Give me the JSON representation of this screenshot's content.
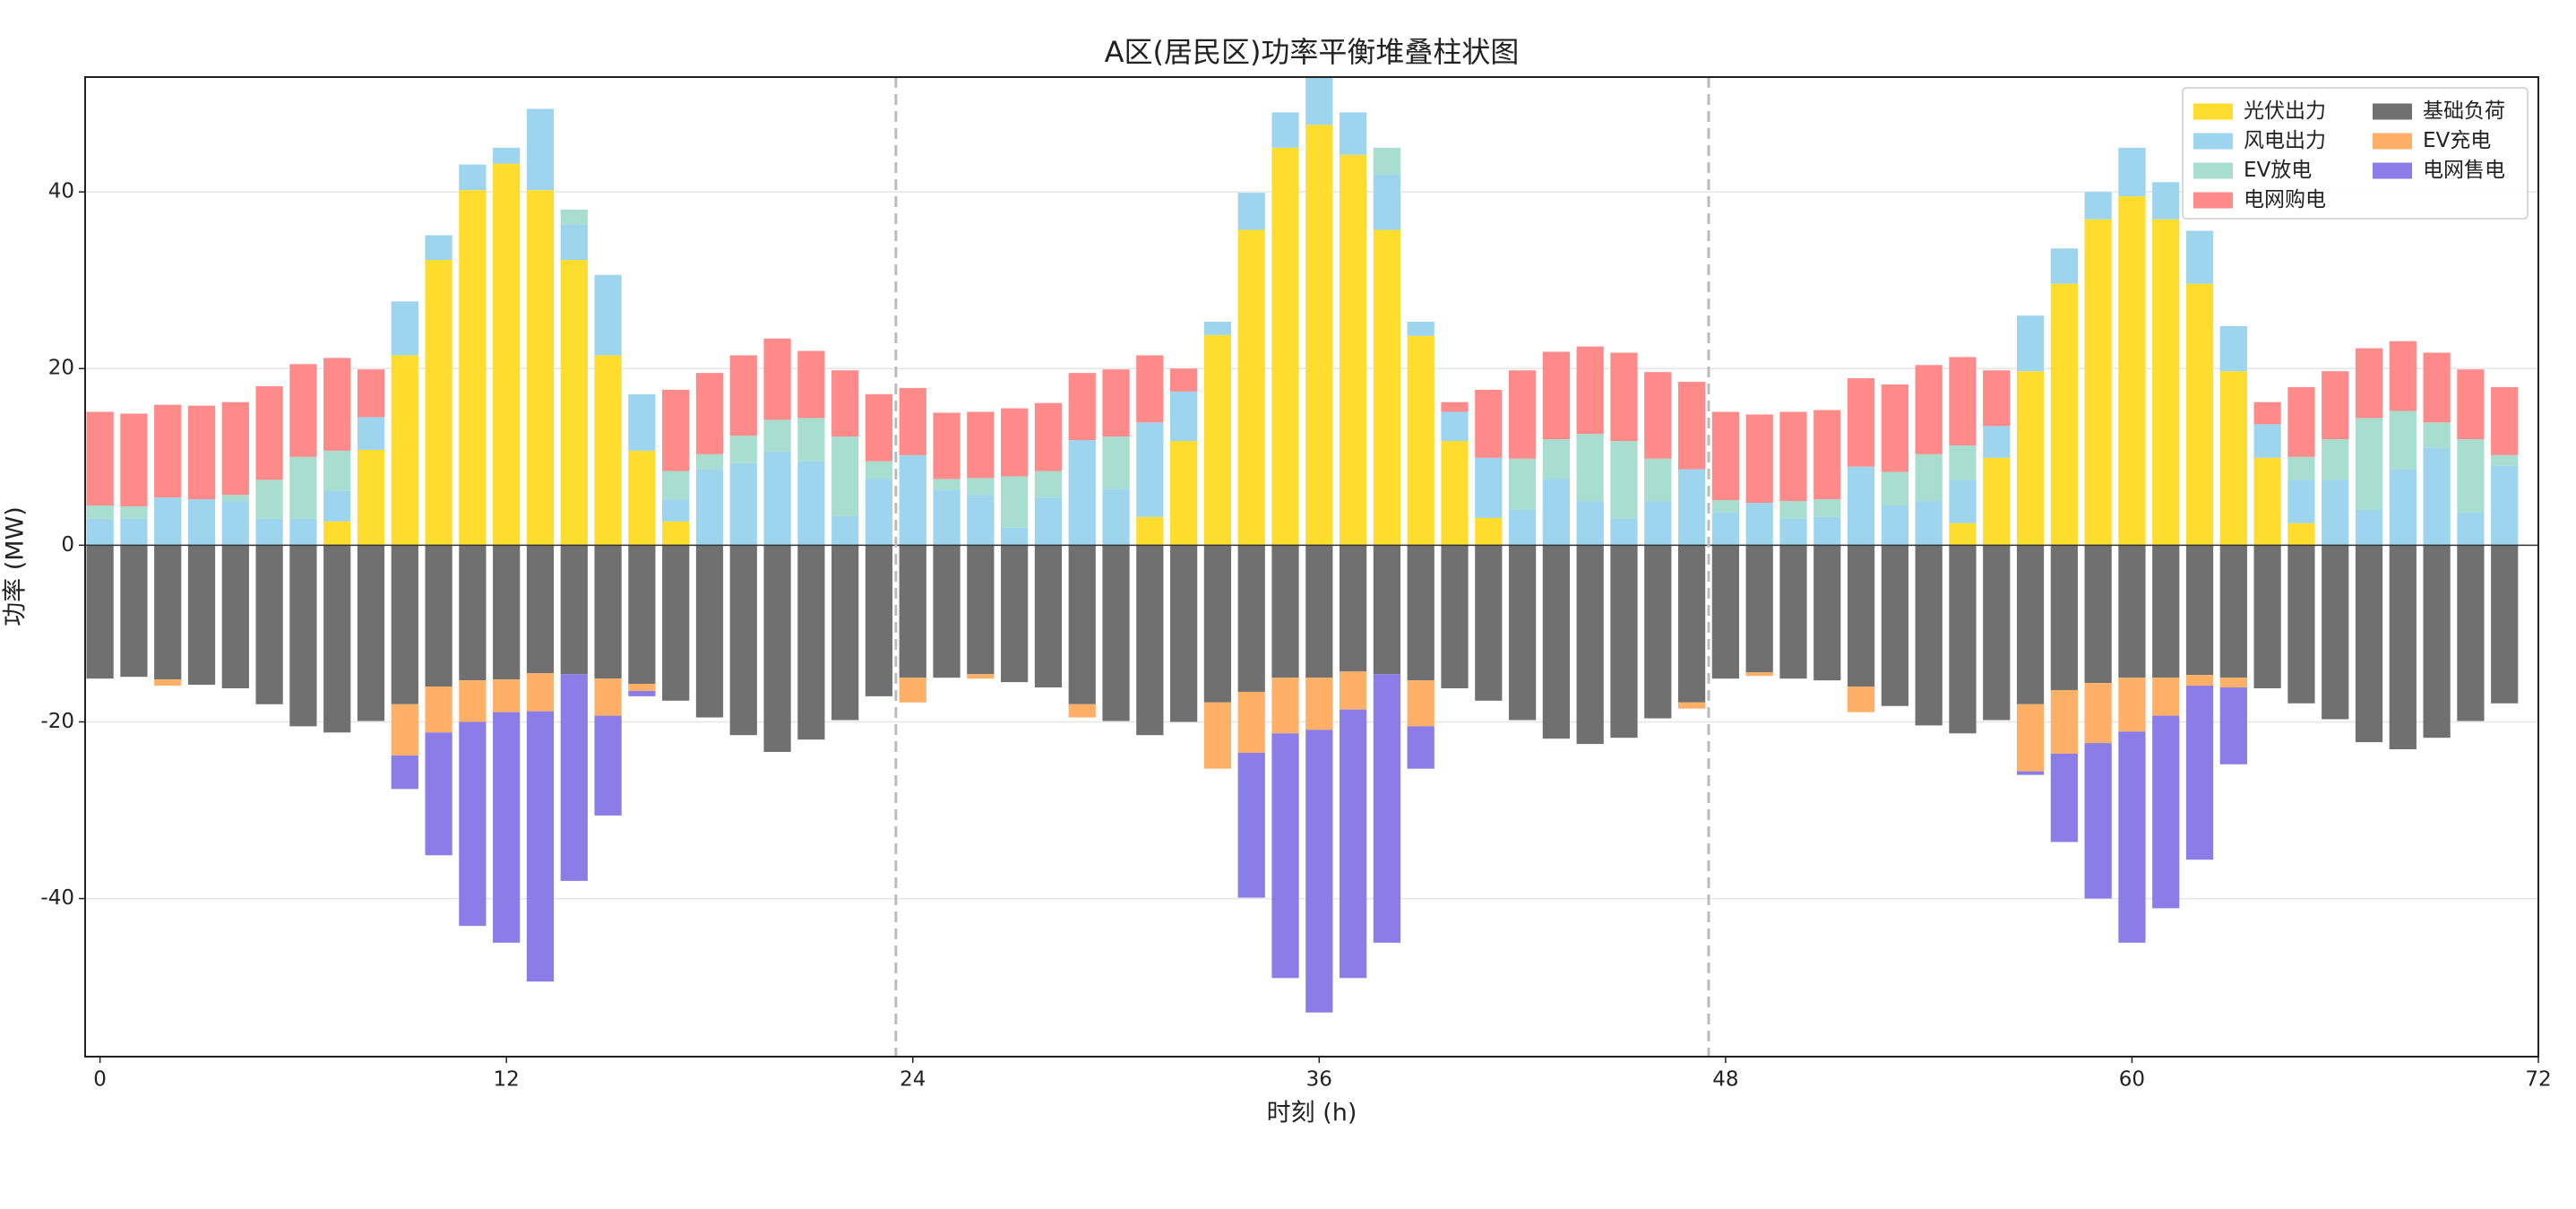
{
  "chart_data": {
    "type": "stacked_bar",
    "title": "A区(居民区)功率平衡堆叠柱状图",
    "x_label": "时刻 (h)",
    "y_label": "功率 (MW)",
    "x": [
      0,
      1,
      2,
      3,
      4,
      5,
      6,
      7,
      8,
      9,
      10,
      11,
      12,
      13,
      14,
      15,
      16,
      17,
      18,
      19,
      20,
      21,
      22,
      23,
      24,
      25,
      26,
      27,
      28,
      29,
      30,
      31,
      32,
      33,
      34,
      35,
      36,
      37,
      38,
      39,
      40,
      41,
      42,
      43,
      44,
      45,
      46,
      47,
      48,
      49,
      50,
      51,
      52,
      53,
      54,
      55,
      56,
      57,
      58,
      59,
      60,
      61,
      62,
      63,
      64,
      65,
      66,
      67,
      68,
      69,
      70,
      71
    ],
    "series": [
      {
        "name": "光伏出力",
        "color": "#FFDD2E",
        "values": [
          0,
          0,
          0,
          0,
          0,
          0,
          0,
          2.7,
          10.8,
          21.5,
          32.3,
          40.2,
          43.2,
          40.2,
          32.3,
          21.5,
          10.7,
          2.7,
          0,
          0,
          0,
          0,
          0,
          0,
          0,
          0,
          0,
          0,
          0,
          0,
          0,
          3.2,
          11.8,
          23.8,
          35.7,
          45,
          47.6,
          44.2,
          35.7,
          23.7,
          11.8,
          3.1,
          0,
          0,
          0,
          0,
          0,
          0,
          0,
          0,
          0,
          0,
          0,
          0,
          0,
          2.5,
          9.9,
          19.7,
          29.6,
          36.9,
          39.5,
          36.9,
          29.6,
          19.7,
          9.9,
          2.5,
          0,
          0,
          0,
          0,
          0,
          0
        ]
      },
      {
        "name": "风电出力",
        "color": "#9DD4EE",
        "values": [
          3,
          3,
          5.4,
          5.2,
          5,
          3,
          3,
          3.5,
          3.7,
          6.1,
          2.8,
          2.9,
          1.8,
          9.2,
          4,
          9.1,
          6.4,
          2.5,
          8.6,
          9.3,
          10.6,
          9.5,
          3.3,
          7.5,
          10.2,
          6.3,
          5.7,
          2,
          5.4,
          11.9,
          6.4,
          10.7,
          5.6,
          1.5,
          4.2,
          4,
          5.3,
          4.8,
          6.3,
          1.6,
          3.3,
          6.8,
          4,
          7.5,
          5,
          3,
          5,
          8.6,
          3.7,
          4.8,
          3,
          3.2,
          8.9,
          4.5,
          5,
          4.9,
          3.6,
          6.3,
          4,
          3.1,
          5.5,
          4.2,
          6,
          5.1,
          3.8,
          4.9,
          7.4,
          4,
          8.6,
          11,
          3.7,
          9
        ]
      },
      {
        "name": "EV放电",
        "color": "#A7DED0",
        "values": [
          1.5,
          1.4,
          0,
          0,
          0.7,
          4.4,
          7,
          4.5,
          0,
          0,
          0,
          0,
          0,
          0,
          1.7,
          0,
          0,
          3.2,
          1.7,
          3.1,
          3.6,
          4.9,
          9,
          2,
          0,
          1.2,
          1.9,
          5.8,
          3,
          0,
          5.9,
          0,
          0,
          0,
          0,
          0,
          0,
          0,
          3,
          0,
          0,
          0,
          5.8,
          4.5,
          7.6,
          8.8,
          4.8,
          0,
          1.4,
          0,
          2,
          2,
          0,
          3.8,
          5.3,
          3.9,
          0,
          0,
          0,
          0,
          0,
          0,
          0,
          0,
          0,
          2.6,
          4.6,
          10.4,
          6.6,
          2.9,
          8.3,
          1.2
        ]
      },
      {
        "name": "电网购电",
        "color": "#FF8A8A",
        "values": [
          10.6,
          10.5,
          10.5,
          10.6,
          10.5,
          10.6,
          10.5,
          10.5,
          5.4,
          0,
          0,
          0,
          0,
          0,
          0,
          0,
          0,
          9.2,
          9.2,
          9.1,
          9.2,
          7.6,
          7.5,
          7.6,
          7.6,
          7.5,
          7.5,
          7.7,
          7.7,
          7.6,
          7.6,
          7.6,
          2.6,
          0,
          0,
          0,
          0,
          0,
          0,
          0,
          1.1,
          7.7,
          10,
          9.9,
          9.9,
          10,
          9.8,
          9.9,
          10,
          10,
          10.1,
          10.1,
          10,
          9.9,
          10.1,
          10,
          6.3,
          0,
          0,
          0,
          0,
          0,
          0,
          0,
          2.5,
          7.9,
          7.7,
          7.9,
          7.9,
          7.9,
          7.9,
          7.7
        ]
      },
      {
        "name": "基础负荷",
        "color": "#707070",
        "values": [
          -15.1,
          -14.9,
          -15.2,
          -15.8,
          -16.2,
          -18,
          -20.5,
          -21.2,
          -19.9,
          -18,
          -16,
          -15.3,
          -15.2,
          -14.5,
          -14.6,
          -15.1,
          -15.7,
          -17.6,
          -19.5,
          -21.5,
          -23.4,
          -22,
          -19.8,
          -17.1,
          -15,
          -15,
          -14.6,
          -15.5,
          -16.1,
          -18,
          -19.9,
          -21.5,
          -20,
          -17.8,
          -16.6,
          -15,
          -15,
          -14.3,
          -14.6,
          -15.3,
          -16.2,
          -17.6,
          -19.8,
          -21.9,
          -22.5,
          -21.8,
          -19.6,
          -17.8,
          -15.1,
          -14.4,
          -15.1,
          -15.3,
          -16,
          -18.2,
          -20.4,
          -21.3,
          -19.8,
          -18,
          -16.4,
          -15.6,
          -15,
          -15,
          -14.7,
          -15,
          -16.2,
          -17.9,
          -19.7,
          -22.3,
          -23.1,
          -21.8,
          -19.9,
          -17.9
        ]
      },
      {
        "name": "EV充电",
        "color": "#FFB066",
        "values": [
          0,
          0,
          -0.7,
          0,
          0,
          0,
          0,
          0,
          0,
          -5.8,
          -5.2,
          -4.7,
          -3.7,
          -4.3,
          0,
          -4.2,
          -0.8,
          0,
          0,
          0,
          0,
          0,
          0,
          0,
          -2.8,
          0,
          -0.5,
          0,
          0,
          -1.5,
          0,
          0,
          0,
          -7.5,
          -6.9,
          -6.3,
          -5.9,
          -4.3,
          0,
          -5.2,
          0,
          0,
          0,
          0,
          0,
          0,
          0,
          -0.7,
          0,
          -0.4,
          0,
          0,
          -2.9,
          0,
          0,
          0,
          0,
          -7.6,
          -7.2,
          -6.8,
          -6.1,
          -4.3,
          -1.2,
          -1.1,
          0,
          0,
          0,
          0,
          0,
          0,
          0,
          0
        ]
      },
      {
        "name": "电网售电",
        "color": "#8B7CE8",
        "values": [
          0,
          0,
          0,
          0,
          0,
          0,
          0,
          0,
          0,
          -3.8,
          -13.9,
          -23.1,
          -26.1,
          -30.6,
          -23.4,
          -11.3,
          -0.6,
          0,
          0,
          0,
          0,
          0,
          0,
          0,
          0,
          0,
          0,
          0,
          0,
          0,
          0,
          0,
          0,
          0,
          -16.4,
          -27.7,
          -32,
          -30.4,
          -30.4,
          -4.8,
          0,
          0,
          0,
          0,
          0,
          0,
          0,
          0,
          0,
          0,
          0,
          0,
          0,
          0,
          0,
          0,
          0,
          -0.4,
          -10,
          -17.6,
          -23.9,
          -21.8,
          -19.7,
          -8.7,
          0,
          0,
          0,
          0,
          0,
          0,
          0,
          0
        ]
      }
    ],
    "xlim": [
      -0.44,
      72
    ],
    "xticks": [
      0,
      12,
      24,
      36,
      48,
      60,
      72
    ],
    "ylim": [
      -57.9,
      53
    ],
    "yticks": [
      -40,
      -20,
      0,
      20,
      40
    ],
    "vlines": [
      23.5,
      47.5
    ],
    "grid": true,
    "legend": "upper right"
  }
}
